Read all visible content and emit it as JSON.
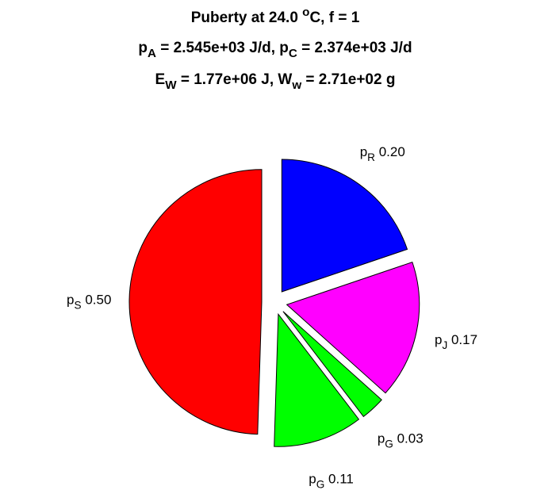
{
  "chart_data": {
    "type": "pie",
    "title": [
      "Puberty at 24.0 ^oC, f = 1",
      "p_A = 2.545e+03 J/d,  p_C = 2.374e+03 J/d",
      "E_W = 1.77e+06 J, W_w = 2.71e+02 g"
    ],
    "categories": [
      "p_S",
      "p_G",
      "p_G",
      "p_J",
      "p_R"
    ],
    "values": [
      0.5,
      0.11,
      0.03,
      0.17,
      0.2
    ],
    "value_labels": [
      "0.50",
      "0.11",
      "0.03",
      "0.17",
      "0.20"
    ],
    "colors": [
      "#ff0000",
      "#00ff00",
      "#00ff00",
      "#ff00ff",
      "#0000ff"
    ]
  }
}
